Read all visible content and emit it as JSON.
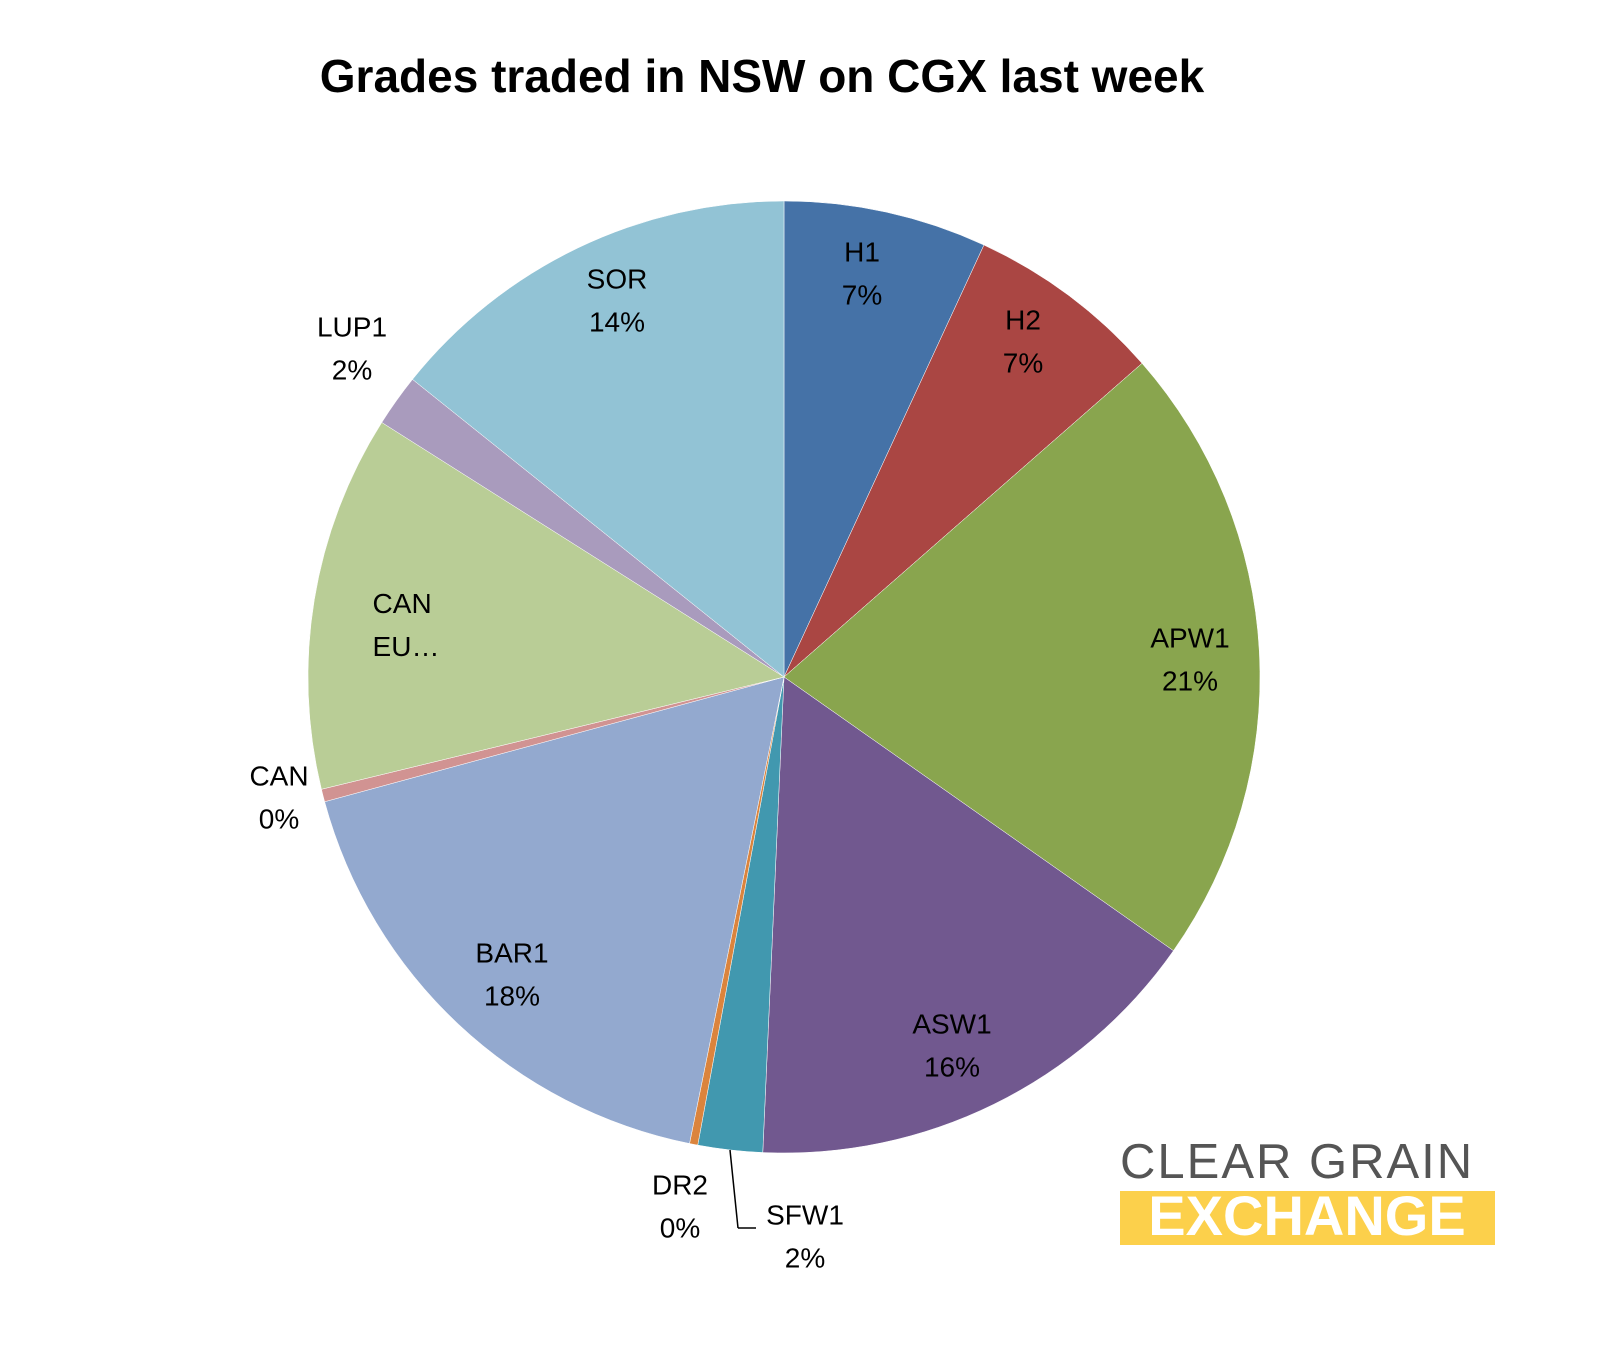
{
  "chart_data": {
    "type": "pie",
    "title": "Grades traded in NSW on CGX last week",
    "categories": [
      "H1",
      "H2",
      "APW1",
      "ASW1",
      "SFW1",
      "DR2",
      "BAR1",
      "CAN",
      "CAN EU…",
      "LUP1",
      "SOR"
    ],
    "values": [
      6.9,
      6.65,
      21.2,
      15.96,
      2.19,
      0.28,
      17.6,
      0.43,
      12.77,
      1.77,
      14.25
    ],
    "value_labels": [
      "7%",
      "7%",
      "21%",
      "16%",
      "2%",
      "0%",
      "18%",
      "0%",
      null,
      "2%",
      "14%"
    ],
    "colors": [
      "#4572a7",
      "#aa4643",
      "#89a54e",
      "#71588f",
      "#4198af",
      "#db843d",
      "#93a9cf",
      "#d19392",
      "#b9cd96",
      "#a99bbd",
      "#92c3d5"
    ]
  },
  "logo": {
    "line1": "CLEAR GRAIN",
    "line2": "EXCHANGE"
  }
}
